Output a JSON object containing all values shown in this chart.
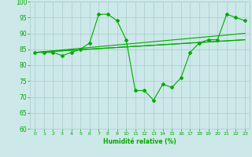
{
  "title": "",
  "xlabel": "Humidité relative (%)",
  "ylabel": "",
  "bg_color": "#cce8e8",
  "grid_color": "#aacccc",
  "line_color": "#00aa00",
  "xlim": [
    -0.5,
    23.5
  ],
  "ylim": [
    60,
    100
  ],
  "yticks": [
    60,
    65,
    70,
    75,
    80,
    85,
    90,
    95,
    100
  ],
  "xticks": [
    0,
    1,
    2,
    3,
    4,
    5,
    6,
    7,
    8,
    9,
    10,
    11,
    12,
    13,
    14,
    15,
    16,
    17,
    18,
    19,
    20,
    21,
    22,
    23
  ],
  "line1": {
    "x": [
      0,
      1,
      2,
      3,
      4,
      5,
      6,
      7,
      8,
      9,
      10,
      11,
      12,
      13,
      14,
      15,
      16,
      17,
      18,
      19,
      20,
      21,
      22,
      23
    ],
    "y": [
      84,
      84,
      84,
      83,
      84,
      85,
      87,
      96,
      96,
      94,
      88,
      72,
      72,
      69,
      74,
      73,
      76,
      84,
      87,
      88,
      88,
      96,
      95,
      94
    ]
  },
  "line2": {
    "x": [
      0,
      23
    ],
    "y": [
      84,
      88
    ]
  },
  "line3": {
    "x": [
      0,
      23
    ],
    "y": [
      84,
      88
    ]
  },
  "line4": {
    "x": [
      0,
      23
    ],
    "y": [
      84,
      90
    ]
  }
}
